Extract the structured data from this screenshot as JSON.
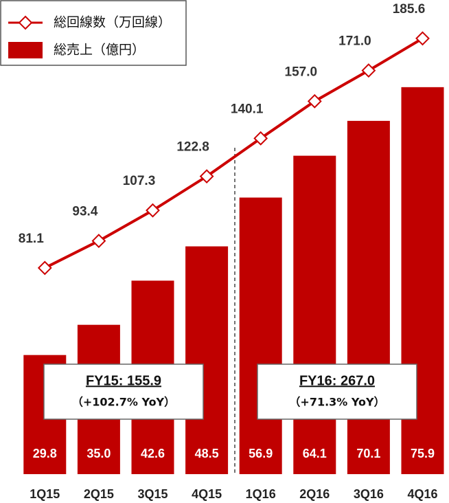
{
  "chart_data": {
    "type": "bar",
    "categories": [
      "1Q15",
      "2Q15",
      "3Q15",
      "4Q15",
      "1Q16",
      "2Q16",
      "3Q16",
      "4Q16"
    ],
    "series": [
      {
        "name": "総売上（億円）",
        "type": "bar",
        "color": "#c00000",
        "values": [
          29.8,
          35.0,
          42.6,
          48.5,
          56.9,
          64.1,
          70.1,
          75.9
        ],
        "value_labels": [
          "29.8",
          "35.0",
          "42.6",
          "48.5",
          "56.9",
          "64.1",
          "70.1",
          "75.9"
        ]
      },
      {
        "name": "総回線数（万回線）",
        "type": "line",
        "axis": "y2",
        "color": "#cc0000",
        "values": [
          81.1,
          93.4,
          107.3,
          122.8,
          140.1,
          157.0,
          171.0,
          185.6
        ],
        "value_labels": [
          "81.1",
          "93.4",
          "107.3",
          "122.8",
          "140.1",
          "157.0",
          "171.0",
          "185.6"
        ]
      }
    ],
    "ylim": [
      9.3,
      90.9
    ],
    "y2lim": [
      -12.8,
      203.1
    ],
    "annotations": [
      {
        "title": "FY15: 155.9",
        "subtitle": "（+102.7% YoY）"
      },
      {
        "title": "FY16: 267.0",
        "subtitle": "（+71.3% YoY）"
      }
    ],
    "legend": "top-left"
  }
}
